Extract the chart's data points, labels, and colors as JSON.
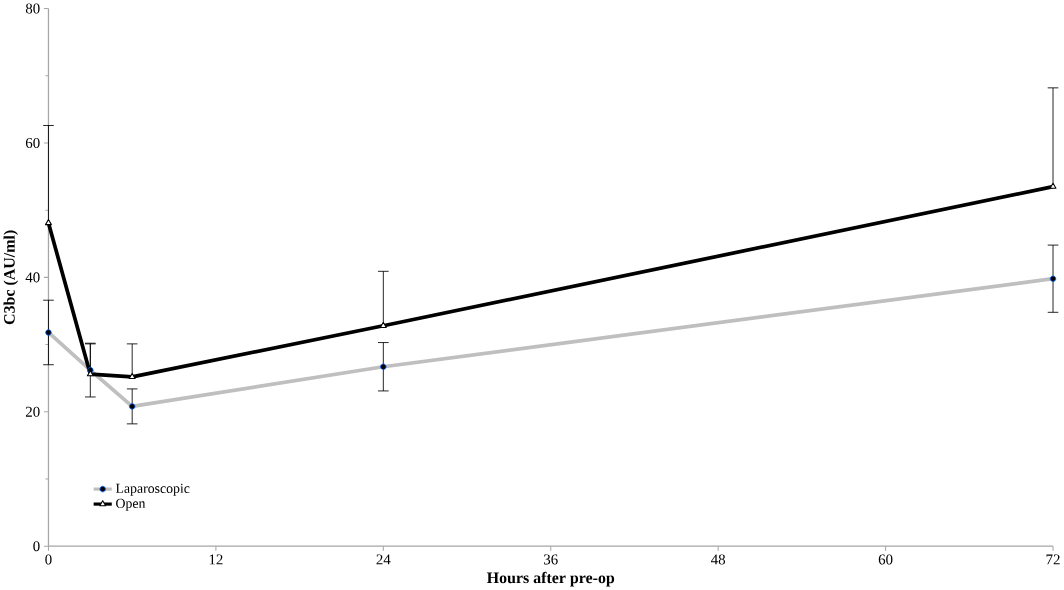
{
  "chart_data": {
    "type": "line",
    "xlabel": "Hours after pre-op",
    "ylabel": "C3bc (AU/ml)",
    "x": [
      0,
      3,
      6,
      24,
      72
    ],
    "series": [
      {
        "name": "Laparoscopic",
        "color": "#bfbfbf",
        "marker": "circle",
        "values": [
          31.8,
          26.2,
          20.8,
          26.7,
          39.8
        ],
        "errors": [
          4.8,
          4.0,
          2.6,
          3.6,
          5.0
        ]
      },
      {
        "name": "Open",
        "color": "#000000",
        "marker": "triangle",
        "values": [
          48.1,
          25.6,
          25.2,
          32.8,
          53.5
        ],
        "errors": [
          [
            48.1,
            62.6
          ],
          [
            25.6,
            30.1
          ],
          [
            25.2,
            30.1
          ],
          [
            32.8,
            40.9
          ],
          [
            53.5,
            68.2
          ]
        ]
      }
    ],
    "xlim": [
      0,
      72
    ],
    "xticks": [
      0,
      12,
      24,
      36,
      48,
      60,
      72
    ],
    "ylim": [
      0,
      80
    ],
    "yticks": [
      0,
      20,
      40,
      60,
      80
    ],
    "grid": false,
    "legend": "bottom left",
    "line_style": "solid"
  }
}
